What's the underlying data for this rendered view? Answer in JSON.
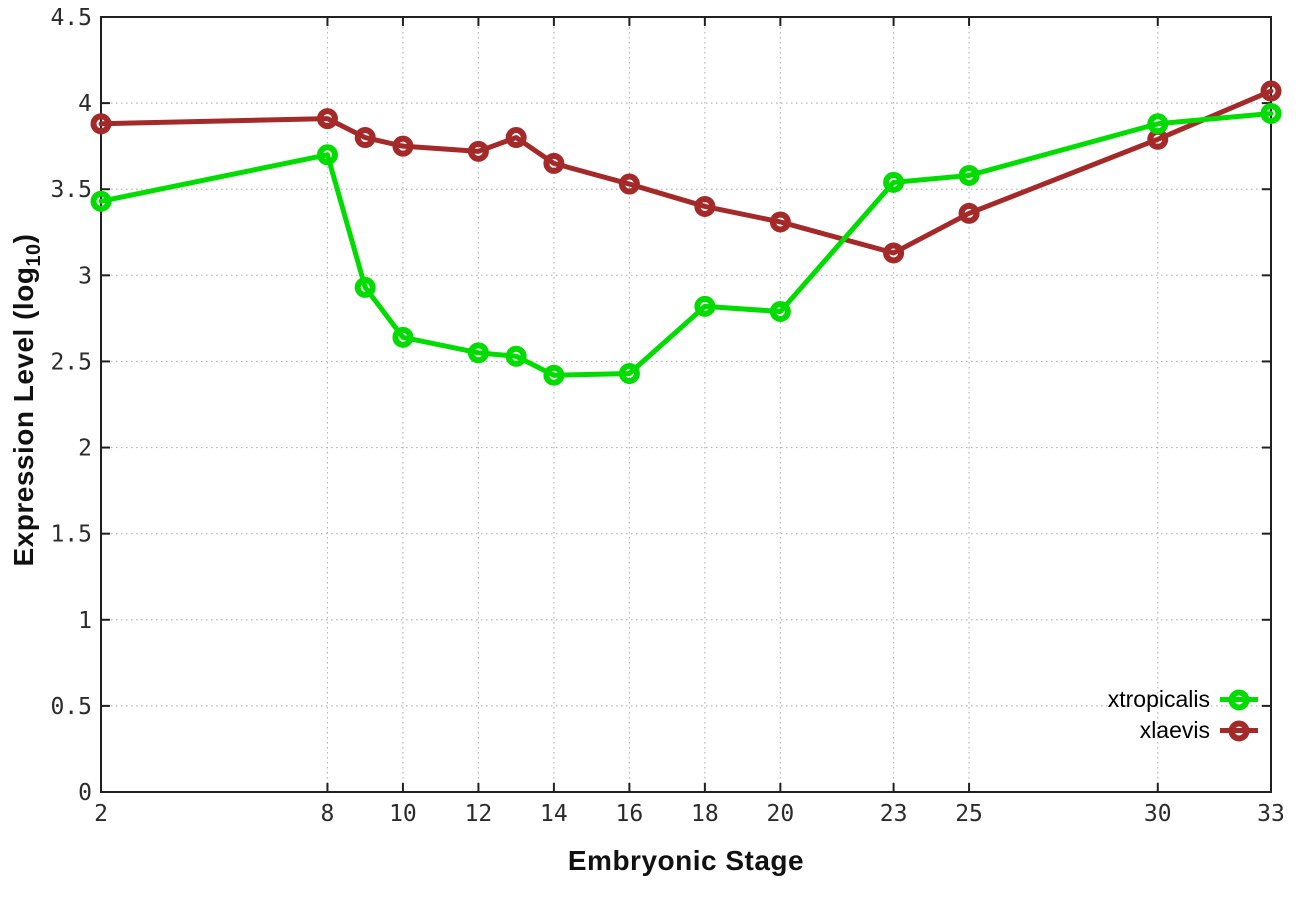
{
  "chart_data": {
    "type": "line",
    "title": "",
    "xlabel": "Embryonic Stage",
    "ylabel": "Expression Level (log10)",
    "ylabel_parts": {
      "prefix": "Expression Level (log",
      "sub": "10",
      "suffix": ")"
    },
    "xlim": [
      2,
      33
    ],
    "ylim": [
      0,
      4.5
    ],
    "grid": true,
    "legend_position": "bottom-right",
    "x": [
      2,
      8,
      9,
      10,
      12,
      13,
      14,
      16,
      18,
      20,
      23,
      25,
      30,
      33
    ],
    "xticks": [
      2,
      8,
      10,
      12,
      14,
      16,
      18,
      20,
      23,
      25,
      30,
      33
    ],
    "yticks": [
      "0",
      "0.5",
      "1",
      "1.5",
      "2",
      "2.5",
      "3",
      "3.5",
      "4",
      "4.5"
    ],
    "series": [
      {
        "name": "xtropicalis",
        "color": "#00dc00",
        "marker": "open-circle",
        "values": [
          3.43,
          3.7,
          2.93,
          2.64,
          2.55,
          2.53,
          2.42,
          2.43,
          2.82,
          2.79,
          3.54,
          3.58,
          3.88,
          3.94
        ]
      },
      {
        "name": "xlaevis",
        "color": "#a42a2a",
        "marker": "open-circle",
        "values": [
          3.88,
          3.91,
          3.8,
          3.75,
          3.72,
          3.8,
          3.65,
          3.53,
          3.4,
          3.31,
          3.13,
          3.36,
          3.79,
          4.07
        ]
      }
    ],
    "axis_color": "#202020",
    "grid_color": "#b5b5b5",
    "tick_label_color": "#2b2b2b"
  }
}
